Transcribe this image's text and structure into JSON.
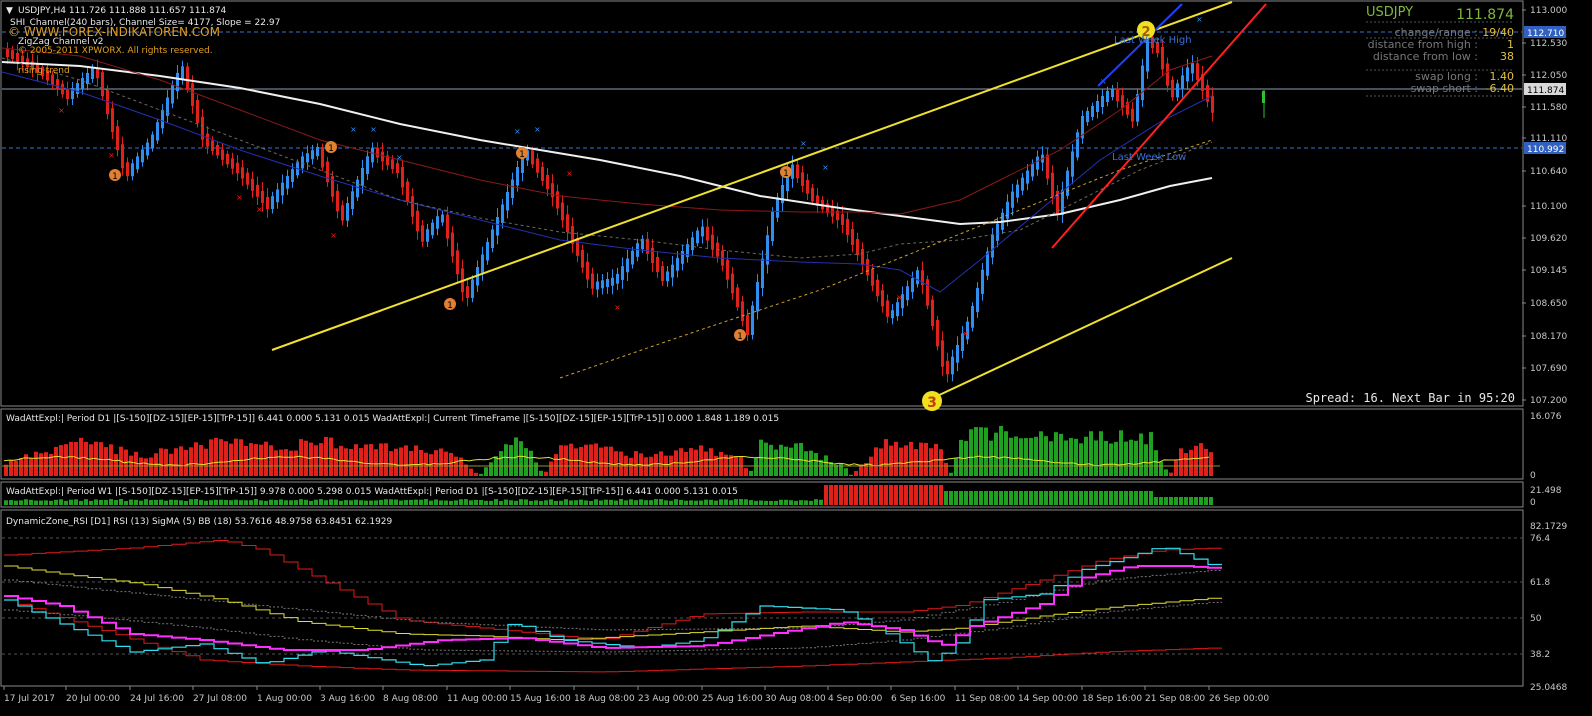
{
  "window": {
    "symbol_header": "USDJPY,H4  111.726 111.888 111.657 111.874",
    "channel_info": "SHI_Channel(240 bars), Channel Size= 4177, Slope = 22.97",
    "watermark": "© WWW.FOREX-INDIKATOREN.COM",
    "zigzag_name": "ZigZag Channel v2",
    "copyright": "© 2005-2011 XPWORX. All rights reserved.",
    "trend_label": "rising trend",
    "spread_info": "Spread: 16. Next Bar in 95:20"
  },
  "info_panel": {
    "symbol": "USDJPY",
    "price": "111.874",
    "rows": [
      {
        "label": "change/range :",
        "value": "19/40"
      },
      {
        "label": "distance from high :",
        "value": "1"
      },
      {
        "label": "distance from low :",
        "value": "38"
      },
      {
        "label": "swap long :",
        "value": "1.40"
      },
      {
        "label": "swap short :",
        "value": "-6.40"
      }
    ]
  },
  "level_labels": {
    "last_week_high": "Last Week High",
    "last_week_low": "Last Week Low"
  },
  "zigzag_labels": {
    "one": "1",
    "two": "2",
    "three": "3"
  },
  "price_axis": {
    "ticks": [
      "113.000",
      "112.530",
      "112.050",
      "111.580",
      "111.110",
      "110.640",
      "110.100",
      "109.620",
      "109.145",
      "108.650",
      "108.170",
      "107.690",
      "107.200"
    ],
    "highlight_high": "112.710",
    "highlight_current": "111.874",
    "highlight_low": "110.992"
  },
  "indicator1": {
    "title": "WadAttExpl:| Period D1 |[S-150][DZ-15][EP-15][TrP-15]] 6.441 0.000 5.131 0.015  WadAttExpl:| Current TimeFrame |[S-150][DZ-15][EP-15][TrP-15]] 0.000 1.848 1.189 0.015",
    "axis_top": "16.076",
    "axis_bottom": "0"
  },
  "indicator2": {
    "title": "WadAttExpl:| Period W1 |[S-150][DZ-15][EP-15][TrP-15]] 9.978 0.000 5.298 0.015  WadAttExpl:| Period D1 |[S-150][DZ-15][EP-15][TrP-15]] 6.441 0.000 5.131 0.015",
    "axis_top": "21.498",
    "axis_bottom": "0"
  },
  "indicator3": {
    "title": "DynamicZone_RSI [D1] RSI (13) SigMA (5) BB (18)  53.7616 48.9758 63.8451 62.1929",
    "axis_ticks": [
      "82.1729",
      "76.4",
      "61.8",
      "50",
      "38.2",
      "25.0468"
    ]
  },
  "time_axis": [
    "17 Jul 2017",
    "20 Jul 00:00",
    "24 Jul 16:00",
    "27 Jul 08:00",
    "1 Aug 00:00",
    "3 Aug 16:00",
    "8 Aug 08:00",
    "11 Aug 00:00",
    "15 Aug 16:00",
    "18 Aug 08:00",
    "23 Aug 00:00",
    "25 Aug 16:00",
    "30 Aug 08:00",
    "4 Sep 00:00",
    "6 Sep 16:00",
    "11 Sep 08:00",
    "14 Sep 00:00",
    "18 Sep 16:00",
    "21 Sep 08:00",
    "26 Sep 00:00"
  ],
  "colors": {
    "bull": "#2e8ff0",
    "bear": "#e0201a",
    "channel": "#f0e030",
    "ma_white": "#f0f0f0",
    "axis_text": "#c8c8c8",
    "info_green": "#7fb83a",
    "info_yellow": "#e0c040",
    "rsi_magenta": "#ff30ff",
    "rsi_cyan": "#30e0f0"
  }
}
